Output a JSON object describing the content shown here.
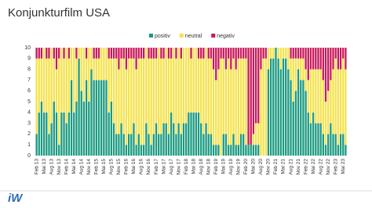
{
  "chart_data": {
    "type": "stacked_bar",
    "title": "Konjunkturfilm USA",
    "categories": [
      "Feb 13",
      null,
      null,
      "Mai 13",
      null,
      null,
      "Aug 13",
      null,
      null,
      "Nov 13",
      null,
      null,
      "Feb 14",
      null,
      null,
      "Mai 14",
      null,
      null,
      "Aug 14",
      null,
      null,
      "Nov 14",
      null,
      null,
      "Feb 15",
      null,
      null,
      "Mai 15",
      null,
      null,
      "Aug 15",
      null,
      null,
      "Nov 15",
      null,
      null,
      "Feb 16",
      null,
      null,
      "Mai 16",
      null,
      null,
      "Aug 16",
      null,
      null,
      "Nov 16",
      null,
      null,
      "Feb 17",
      null,
      null,
      "Mai 17",
      null,
      null,
      "Aug 17",
      null,
      null,
      "Nov 17",
      null,
      null,
      "Feb 18",
      null,
      null,
      "Mai 18",
      null,
      null,
      "Aug 18",
      null,
      null,
      "Nov 18",
      null,
      null,
      "Feb 19",
      null,
      null,
      "Mai 19",
      null,
      null,
      "Aug 19",
      null,
      null,
      "Nov 19",
      null,
      null,
      "Feb 20",
      null,
      null,
      "Mai 20",
      null,
      null,
      "Aug 20",
      null,
      null,
      "Nov 20",
      null,
      null,
      "Feb 21",
      null,
      null,
      "Mai 21",
      null,
      null,
      "Aug 21",
      null,
      null,
      "Nov 21",
      null,
      null,
      "Feb 22",
      null,
      null,
      "Mai 22",
      null,
      null,
      "Aug 22",
      null,
      null,
      "Nov 22",
      null,
      null,
      "Feb 23",
      null,
      null,
      "Mai 23",
      null
    ],
    "series": [
      {
        "name": "positiv",
        "color": "#1b9a80",
        "values": [
          2,
          4,
          5,
          4,
          4,
          2,
          3,
          5,
          4,
          1,
          4,
          4,
          3,
          4,
          7,
          4,
          5,
          9,
          6,
          5,
          7,
          5,
          8,
          7,
          7,
          7,
          7,
          7,
          7,
          4,
          5,
          3,
          2,
          2,
          3,
          2,
          1,
          2,
          2,
          3,
          1,
          2,
          1,
          1,
          3,
          2,
          1,
          2,
          3,
          2,
          2,
          3,
          3,
          2,
          4,
          3,
          2,
          3,
          2,
          3,
          3,
          4,
          4,
          4,
          4,
          4,
          3,
          2,
          3,
          2,
          2,
          1,
          1,
          1,
          0,
          2,
          2,
          1,
          1,
          2,
          1,
          1,
          2,
          2,
          1,
          1,
          1,
          1,
          1,
          1,
          0,
          0,
          0,
          8,
          9,
          9,
          10,
          9,
          8,
          9,
          9,
          8,
          7,
          5,
          6,
          8,
          7,
          7,
          6,
          4,
          3,
          4,
          3,
          3,
          3,
          2,
          1,
          2,
          3,
          2,
          2,
          1,
          2,
          2,
          1
        ]
      },
      {
        "name": "neutral",
        "color": "#f4e24b",
        "values": [
          7,
          5,
          4,
          6,
          5,
          7,
          7,
          4,
          4,
          8,
          6,
          5,
          7,
          5,
          3,
          6,
          4,
          1,
          4,
          5,
          2,
          5,
          2,
          2,
          2,
          2,
          3,
          3,
          3,
          5,
          4,
          6,
          7,
          6,
          6,
          7,
          7,
          7,
          7,
          6,
          7,
          7,
          8,
          8,
          7,
          7,
          8,
          7,
          6,
          8,
          7,
          6,
          7,
          7,
          5,
          7,
          7,
          7,
          7,
          7,
          7,
          6,
          5,
          6,
          6,
          5,
          6,
          7,
          7,
          7,
          7,
          7,
          6,
          7,
          9,
          7,
          6,
          8,
          7,
          7,
          7,
          8,
          7,
          7,
          8,
          0,
          0,
          1,
          2,
          2,
          8,
          9,
          9,
          2,
          1,
          1,
          0,
          1,
          2,
          1,
          1,
          2,
          2,
          4,
          3,
          1,
          2,
          2,
          2,
          3,
          5,
          4,
          5,
          5,
          5,
          5,
          4,
          4,
          4,
          6,
          7,
          7,
          6,
          7,
          7
        ]
      },
      {
        "name": "negativ",
        "color": "#c8185a",
        "values": [
          1,
          1,
          1,
          0,
          1,
          1,
          0,
          1,
          2,
          1,
          0,
          1,
          0,
          1,
          0,
          0,
          1,
          0,
          0,
          0,
          1,
          0,
          0,
          1,
          1,
          1,
          0,
          0,
          0,
          1,
          1,
          1,
          1,
          2,
          1,
          1,
          2,
          1,
          1,
          1,
          2,
          1,
          1,
          1,
          0,
          1,
          1,
          1,
          1,
          0,
          1,
          1,
          0,
          1,
          1,
          0,
          1,
          0,
          1,
          0,
          0,
          0,
          1,
          0,
          0,
          1,
          1,
          1,
          0,
          1,
          1,
          2,
          3,
          2,
          1,
          1,
          2,
          1,
          2,
          1,
          2,
          1,
          1,
          1,
          1,
          9,
          9,
          8,
          7,
          7,
          2,
          1,
          1,
          0,
          0,
          0,
          0,
          0,
          0,
          0,
          0,
          0,
          1,
          1,
          1,
          1,
          1,
          1,
          2,
          3,
          2,
          2,
          2,
          2,
          2,
          3,
          5,
          4,
          3,
          2,
          1,
          2,
          2,
          1,
          2
        ]
      }
    ],
    "ylim": [
      0,
      10
    ],
    "yticks": [
      0,
      1,
      2,
      3,
      4,
      5,
      6,
      7,
      8,
      9,
      10
    ],
    "grid": false,
    "legend": "top-right"
  },
  "logo": "iW"
}
